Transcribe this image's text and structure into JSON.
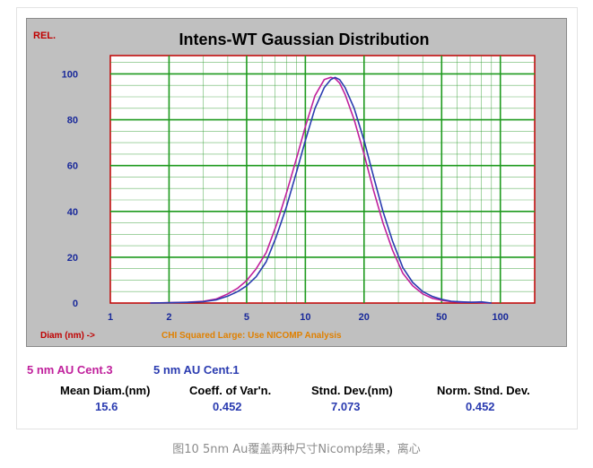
{
  "chart_data": {
    "type": "line",
    "title": "Intens-WT Gaussian Distribution",
    "ylabel": "REL.",
    "xlabel": "Diam (nm) ->",
    "warning": "CHI Squared Large: Use NICOMP Analysis",
    "x_scale": "log",
    "xlim": [
      1,
      150
    ],
    "ylim": [
      0,
      108
    ],
    "x_ticks": [
      1,
      2,
      5,
      10,
      20,
      50,
      100
    ],
    "x_tick_labels": [
      "1",
      "2",
      "5",
      "10",
      "20",
      "50",
      "100"
    ],
    "y_ticks": [
      0,
      20,
      40,
      60,
      80,
      100
    ],
    "y_tick_labels": [
      "0",
      "20",
      "40",
      "60",
      "80",
      "100"
    ],
    "grid": true,
    "series": [
      {
        "name": "5 nm AU Cent.3",
        "color": "#c0209c",
        "x": [
          1.6,
          2.0,
          2.5,
          3.0,
          3.5,
          4.0,
          4.5,
          5.0,
          5.6,
          6.3,
          7.1,
          8.0,
          9.0,
          10.0,
          11.2,
          12.5,
          13.5,
          14.2,
          15.0,
          16.0,
          17.8,
          20.0,
          22.4,
          25.0,
          28.0,
          31.6,
          35.5,
          40.0,
          45.0,
          50.0,
          56.0,
          63.0,
          71.0,
          80.0,
          90.0
        ],
        "y": [
          0,
          0.2,
          0.4,
          0.8,
          1.8,
          4.0,
          6.5,
          9.8,
          15.0,
          22.0,
          34.0,
          48.0,
          63.0,
          77.0,
          90.5,
          97.5,
          98.5,
          98.0,
          96.0,
          91.0,
          80.0,
          65.0,
          49.0,
          35.0,
          23.0,
          13.0,
          7.5,
          4.0,
          2.0,
          1.2,
          0.6,
          0.3,
          0.4,
          0.2,
          0
        ]
      },
      {
        "name": "5 nm AU Cent.1",
        "color": "#2a3bb0",
        "x": [
          1.6,
          2.0,
          2.5,
          3.0,
          3.5,
          4.0,
          4.5,
          5.0,
          5.6,
          6.3,
          7.1,
          8.0,
          9.0,
          10.0,
          11.2,
          12.5,
          13.5,
          14.2,
          15.0,
          16.0,
          17.8,
          20.0,
          22.4,
          25.0,
          28.0,
          31.6,
          35.5,
          40.0,
          45.0,
          50.0,
          56.0,
          63.0,
          71.0,
          80.0,
          90.0
        ],
        "y": [
          0,
          0.1,
          0.3,
          0.6,
          1.4,
          3.0,
          5.0,
          7.5,
          11.5,
          18.0,
          29.0,
          42.0,
          57.0,
          71.0,
          85.0,
          94.0,
          97.5,
          98.5,
          97.5,
          94.0,
          85.0,
          71.0,
          55.0,
          40.0,
          27.0,
          15.5,
          9.0,
          5.0,
          2.8,
          1.6,
          0.8,
          0.5,
          0.3,
          0.5,
          0
        ]
      }
    ]
  },
  "legend": {
    "series1": "5 nm AU Cent.3",
    "series2": "5 nm AU Cent.1",
    "series1_color": "#c0209c",
    "series2_color": "#2a3bb0"
  },
  "stats": {
    "mean_label": "Mean Diam.(nm)",
    "mean_value": "15.6",
    "cv_label": "Coeff. of Var'n.",
    "cv_value": "0.452",
    "sd_label": "Stnd. Dev.(nm)",
    "sd_value": "7.073",
    "nsd_label": "Norm. Stnd. Dev.",
    "nsd_value": "0.452"
  },
  "caption": "图10 5nm Au覆盖两种尺寸Nicomp结果，离心"
}
